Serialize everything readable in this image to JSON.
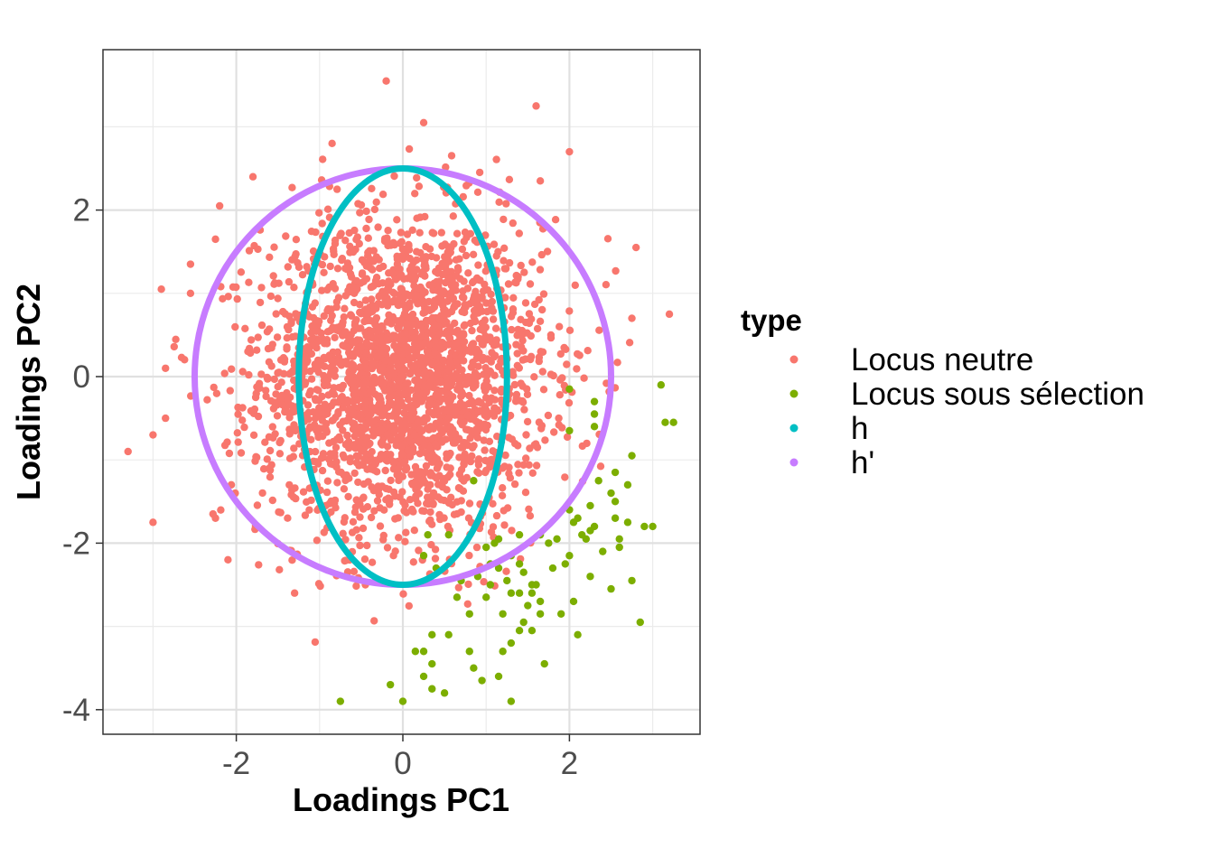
{
  "chart_data": {
    "type": "scatter",
    "title": "",
    "xlabel": "Loadings PC1",
    "ylabel": "Loadings PC2",
    "xlim": [
      -3.6,
      3.6
    ],
    "ylim": [
      -4.3,
      3.9
    ],
    "x_ticks": [
      -2,
      0,
      2
    ],
    "x_tick_labels": [
      "-2",
      "0",
      "2"
    ],
    "y_ticks": [
      -4,
      -2,
      0,
      2
    ],
    "y_tick_labels": [
      "-4",
      "-2",
      "0",
      "2"
    ],
    "grid": true,
    "legend": {
      "title": "type",
      "position": "right",
      "entries": [
        {
          "label": "Locus neutre",
          "color": "#F8766D"
        },
        {
          "label": "Locus sous sélection",
          "color": "#7CAE00"
        },
        {
          "label": "h",
          "color": "#00BFC4"
        },
        {
          "label": "h'",
          "color": "#C77CFF"
        }
      ]
    },
    "series": [
      {
        "name": "Locus neutre",
        "color": "#F8766D",
        "description_points": "approx. 2500 points, roughly bivariate normal centered at (0,0), sd about 0.85 (PC1) and 0.95 (PC2)",
        "outlier_points": [
          [
            -0.2,
            3.55
          ],
          [
            1.6,
            3.25
          ],
          [
            0.25,
            3.05
          ],
          [
            -0.85,
            2.8
          ],
          [
            2.0,
            2.7
          ],
          [
            1.65,
            2.35
          ],
          [
            -1.8,
            2.4
          ],
          [
            -2.2,
            2.05
          ],
          [
            -2.25,
            1.65
          ],
          [
            2.8,
            1.55
          ],
          [
            -2.55,
            1.35
          ],
          [
            -2.9,
            1.05
          ],
          [
            -2.55,
            1.0
          ],
          [
            3.2,
            0.75
          ],
          [
            2.75,
            0.7
          ],
          [
            -2.85,
            0.1
          ],
          [
            -3.3,
            -0.9
          ],
          [
            -3.0,
            -0.7
          ],
          [
            -2.85,
            -0.5
          ],
          [
            -3.0,
            -1.75
          ],
          [
            -2.25,
            -1.7
          ],
          [
            -2.1,
            -2.2
          ],
          [
            -1.3,
            -2.6
          ],
          [
            -0.45,
            -2.5
          ]
        ]
      },
      {
        "name": "Locus sous sélection",
        "color": "#7CAE00",
        "points": [
          [
            -0.75,
            -3.9
          ],
          [
            0.0,
            -3.9
          ],
          [
            -0.15,
            -3.7
          ],
          [
            0.5,
            -3.8
          ],
          [
            0.35,
            -3.75
          ],
          [
            0.95,
            -3.65
          ],
          [
            1.3,
            -3.9
          ],
          [
            1.15,
            -3.6
          ],
          [
            0.85,
            -3.5
          ],
          [
            1.7,
            -3.45
          ],
          [
            0.35,
            -3.45
          ],
          [
            0.25,
            -3.6
          ],
          [
            1.2,
            -3.3
          ],
          [
            1.3,
            -3.2
          ],
          [
            0.8,
            -3.3
          ],
          [
            0.25,
            -3.3
          ],
          [
            0.15,
            -3.3
          ],
          [
            0.35,
            -3.1
          ],
          [
            0.55,
            -3.1
          ],
          [
            1.4,
            -3.05
          ],
          [
            1.45,
            -2.95
          ],
          [
            1.55,
            -3.05
          ],
          [
            2.1,
            -3.1
          ],
          [
            1.9,
            -2.85
          ],
          [
            1.65,
            -2.85
          ],
          [
            1.5,
            -2.75
          ],
          [
            1.65,
            -2.7
          ],
          [
            1.3,
            -2.6
          ],
          [
            1.2,
            -2.85
          ],
          [
            0.8,
            -2.85
          ],
          [
            0.65,
            -2.65
          ],
          [
            1.0,
            -2.65
          ],
          [
            1.55,
            -2.6
          ],
          [
            1.4,
            -2.6
          ],
          [
            1.25,
            -2.45
          ],
          [
            1.55,
            -2.5
          ],
          [
            1.6,
            -2.5
          ],
          [
            0.4,
            -2.3
          ],
          [
            0.7,
            -2.45
          ],
          [
            1.15,
            -2.3
          ],
          [
            1.05,
            -2.25
          ],
          [
            1.3,
            -2.15
          ],
          [
            0.25,
            -2.15
          ],
          [
            1.0,
            -2.05
          ],
          [
            1.45,
            -2.35
          ],
          [
            1.8,
            -2.3
          ],
          [
            1.95,
            -2.25
          ],
          [
            2.25,
            -2.4
          ],
          [
            2.5,
            -2.55
          ],
          [
            2.75,
            -2.45
          ],
          [
            2.85,
            -2.95
          ],
          [
            2.05,
            -2.7
          ],
          [
            2.4,
            -2.1
          ],
          [
            2.6,
            -2.05
          ],
          [
            2.0,
            -2.15
          ],
          [
            0.55,
            -1.9
          ],
          [
            0.3,
            -1.9
          ],
          [
            1.1,
            -2.0
          ],
          [
            1.15,
            -1.95
          ],
          [
            1.4,
            -1.9
          ],
          [
            1.65,
            -1.9
          ],
          [
            1.85,
            -1.95
          ],
          [
            2.15,
            -1.9
          ],
          [
            2.25,
            -1.85
          ],
          [
            2.2,
            -1.95
          ],
          [
            2.05,
            -1.75
          ],
          [
            2.3,
            -1.8
          ],
          [
            2.55,
            -1.7
          ],
          [
            2.7,
            -1.75
          ],
          [
            2.9,
            -1.8
          ],
          [
            2.6,
            -1.95
          ],
          [
            3.0,
            -1.8
          ],
          [
            2.0,
            -1.6
          ],
          [
            2.1,
            -1.7
          ],
          [
            2.25,
            -1.55
          ],
          [
            2.5,
            -1.4
          ],
          [
            2.55,
            -1.5
          ],
          [
            2.7,
            -1.3
          ],
          [
            2.35,
            -1.25
          ],
          [
            2.55,
            -1.15
          ],
          [
            2.75,
            -0.95
          ],
          [
            0.85,
            -1.25
          ],
          [
            2.0,
            -0.65
          ],
          [
            2.3,
            -0.6
          ],
          [
            2.3,
            -0.45
          ],
          [
            2.3,
            -0.3
          ],
          [
            2.0,
            -0.15
          ],
          [
            3.1,
            -0.1
          ],
          [
            3.15,
            -0.55
          ],
          [
            3.25,
            -0.55
          ],
          [
            1.75,
            -2.0
          ],
          [
            1.4,
            -2.25
          ],
          [
            0.9,
            -2.4
          ],
          [
            1.05,
            -2.5
          ]
        ]
      },
      {
        "name": "h",
        "color": "#00BFC4",
        "ellipse": {
          "center": [
            0,
            0
          ],
          "rx": 1.25,
          "ry": 2.5
        }
      },
      {
        "name": "h'",
        "color": "#C77CFF",
        "ellipse": {
          "center": [
            0,
            0
          ],
          "rx": 2.5,
          "ry": 2.5
        }
      }
    ]
  }
}
